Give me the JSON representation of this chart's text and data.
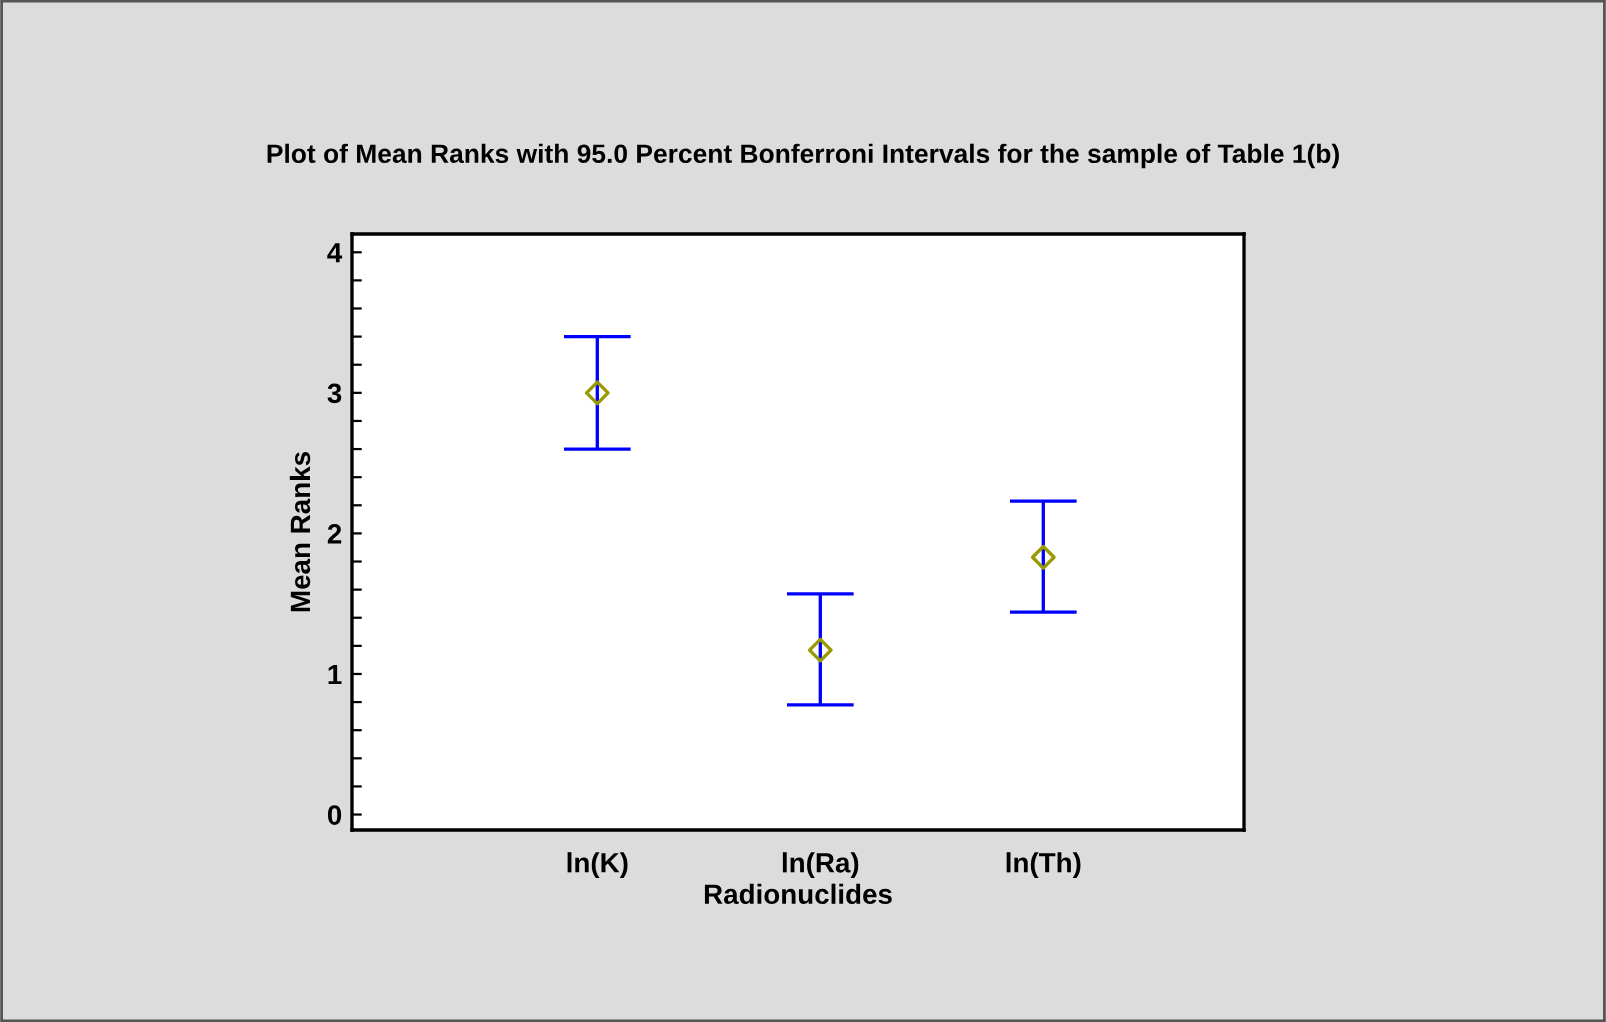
{
  "chart_data": {
    "type": "scatter",
    "title": "Plot of Mean Ranks with 95.0 Percent Bonferroni Intervals for the sample of Table 1(b)",
    "xlabel": "Radionuclides",
    "ylabel": "Mean Ranks",
    "categories": [
      "ln(K)",
      "ln(Ra)",
      "ln(Th)"
    ],
    "series": [
      {
        "color": "#999900",
        "values": [
          3.0,
          1.17,
          1.83
        ],
        "errors": [
          [
            2.6,
            3.4
          ],
          [
            0.78,
            1.57
          ],
          [
            1.44,
            2.23
          ]
        ]
      }
    ],
    "ylim": [
      -0.11,
      4.13
    ],
    "yticks": [
      0,
      {
        "value": 0.2,
        "label": null
      },
      {
        "value": 0.4,
        "label": null
      },
      {
        "value": 0.6,
        "label": null
      },
      {
        "value": 0.8,
        "label": null
      },
      1,
      {
        "value": 1.2,
        "label": null
      },
      {
        "value": 1.4,
        "label": null
      },
      {
        "value": 1.6,
        "label": null
      },
      {
        "value": 1.8,
        "label": null
      },
      2,
      {
        "value": 2.2,
        "label": null
      },
      {
        "value": 2.4,
        "label": null
      },
      {
        "value": 2.6,
        "label": null
      },
      {
        "value": 2.8,
        "label": null
      },
      3,
      {
        "value": 3.2,
        "label": null
      },
      {
        "value": 3.4,
        "label": null
      },
      {
        "value": 3.6,
        "label": null
      },
      {
        "value": 3.8,
        "label": null
      },
      4
    ],
    "marker": "diamond",
    "grid": false,
    "legend": false
  }
}
